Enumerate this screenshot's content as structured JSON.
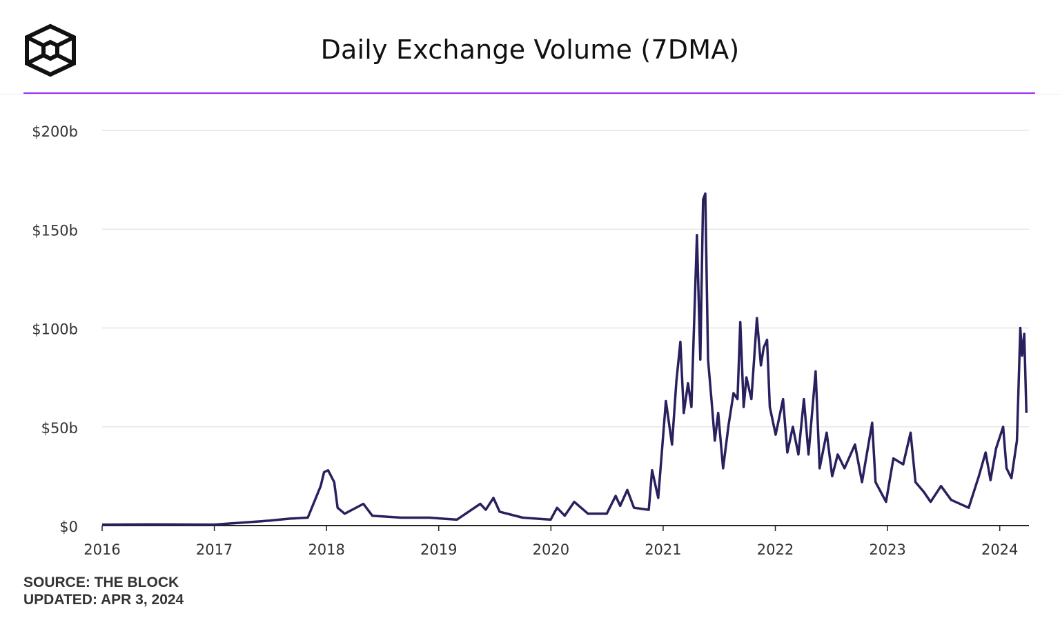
{
  "header": {
    "title": "Daily Exchange Volume (7DMA)",
    "logo": "the-block-cube-logo",
    "accent_color": "#9a2ff0"
  },
  "footer": {
    "source": "SOURCE: THE BLOCK",
    "updated": "UPDATED: APR 3, 2024"
  },
  "chart_data": {
    "type": "line",
    "title": "Daily Exchange Volume (7DMA)",
    "xlabel": "",
    "ylabel": "",
    "xlim": [
      "2016-01-01",
      "2024-04-03"
    ],
    "ylim": [
      0,
      200
    ],
    "grid": true,
    "line_color": "#28215e",
    "x_ticks": [
      "2016",
      "2017",
      "2018",
      "2019",
      "2020",
      "2021",
      "2022",
      "2023",
      "2024"
    ],
    "y_ticks": [
      {
        "value": 0,
        "label": "$0"
      },
      {
        "value": 50,
        "label": "$50b"
      },
      {
        "value": 100,
        "label": "$100b"
      },
      {
        "value": 150,
        "label": "$150b"
      },
      {
        "value": 200,
        "label": "$200b"
      }
    ],
    "series": [
      {
        "unit": "USD billions",
        "points": [
          [
            "2016-01-01",
            0.5
          ],
          [
            "2016-06-01",
            0.6
          ],
          [
            "2016-12-31",
            0.5
          ],
          [
            "2017-04-01",
            1.5
          ],
          [
            "2017-07-01",
            2.5
          ],
          [
            "2017-09-01",
            3.5
          ],
          [
            "2017-11-01",
            4
          ],
          [
            "2017-12-13",
            20
          ],
          [
            "2017-12-24",
            27
          ],
          [
            "2018-01-06",
            28
          ],
          [
            "2018-01-26",
            22
          ],
          [
            "2018-02-06",
            9
          ],
          [
            "2018-03-01",
            6
          ],
          [
            "2018-05-01",
            11
          ],
          [
            "2018-05-30",
            5
          ],
          [
            "2018-09-01",
            4
          ],
          [
            "2018-12-01",
            4
          ],
          [
            "2019-03-01",
            3
          ],
          [
            "2019-05-16",
            11
          ],
          [
            "2019-06-03",
            8
          ],
          [
            "2019-06-28",
            14
          ],
          [
            "2019-07-18",
            7
          ],
          [
            "2019-10-01",
            4
          ],
          [
            "2019-12-31",
            3
          ],
          [
            "2020-01-21",
            9
          ],
          [
            "2020-02-15",
            5
          ],
          [
            "2020-03-17",
            12
          ],
          [
            "2020-05-01",
            6
          ],
          [
            "2020-07-01",
            6
          ],
          [
            "2020-07-30",
            15
          ],
          [
            "2020-08-14",
            10
          ],
          [
            "2020-09-06",
            18
          ],
          [
            "2020-09-28",
            9
          ],
          [
            "2020-11-15",
            8
          ],
          [
            "2020-11-26",
            28
          ],
          [
            "2020-12-16",
            14
          ],
          [
            "2021-01-10",
            63
          ],
          [
            "2021-01-30",
            41
          ],
          [
            "2021-02-13",
            73
          ],
          [
            "2021-02-26",
            93
          ],
          [
            "2021-03-09",
            57
          ],
          [
            "2021-03-23",
            72
          ],
          [
            "2021-04-03",
            60
          ],
          [
            "2021-04-21",
            147
          ],
          [
            "2021-05-02",
            84
          ],
          [
            "2021-05-11",
            165
          ],
          [
            "2021-05-18",
            168
          ],
          [
            "2021-05-27",
            84
          ],
          [
            "2021-06-07",
            64
          ],
          [
            "2021-06-18",
            43
          ],
          [
            "2021-06-29",
            57
          ],
          [
            "2021-07-15",
            29
          ],
          [
            "2021-08-02",
            51
          ],
          [
            "2021-08-18",
            67
          ],
          [
            "2021-08-31",
            64
          ],
          [
            "2021-09-09",
            103
          ],
          [
            "2021-09-20",
            60
          ],
          [
            "2021-09-29",
            75
          ],
          [
            "2021-10-15",
            64
          ],
          [
            "2021-11-02",
            105
          ],
          [
            "2021-11-15",
            81
          ],
          [
            "2021-11-24",
            90
          ],
          [
            "2021-12-05",
            94
          ],
          [
            "2021-12-14",
            60
          ],
          [
            "2022-01-02",
            46
          ],
          [
            "2022-01-26",
            64
          ],
          [
            "2022-02-09",
            37
          ],
          [
            "2022-02-27",
            50
          ],
          [
            "2022-03-17",
            36
          ],
          [
            "2022-04-04",
            64
          ],
          [
            "2022-04-19",
            36
          ],
          [
            "2022-05-12",
            78
          ],
          [
            "2022-05-25",
            29
          ],
          [
            "2022-06-17",
            47
          ],
          [
            "2022-07-05",
            25
          ],
          [
            "2022-07-23",
            36
          ],
          [
            "2022-08-14",
            29
          ],
          [
            "2022-09-17",
            41
          ],
          [
            "2022-10-10",
            22
          ],
          [
            "2022-11-12",
            52
          ],
          [
            "2022-11-23",
            22
          ],
          [
            "2022-12-27",
            12
          ],
          [
            "2023-01-20",
            34
          ],
          [
            "2023-02-21",
            31
          ],
          [
            "2023-03-17",
            47
          ],
          [
            "2023-04-02",
            22
          ],
          [
            "2023-04-29",
            17
          ],
          [
            "2023-05-21",
            12
          ],
          [
            "2023-06-24",
            20
          ],
          [
            "2023-07-27",
            13
          ],
          [
            "2023-09-22",
            9
          ],
          [
            "2023-10-25",
            25
          ],
          [
            "2023-11-16",
            37
          ],
          [
            "2023-12-02",
            23
          ],
          [
            "2023-12-20",
            39
          ],
          [
            "2024-01-12",
            50
          ],
          [
            "2024-01-23",
            29
          ],
          [
            "2024-02-08",
            24
          ],
          [
            "2024-02-26",
            43
          ],
          [
            "2024-03-08",
            100
          ],
          [
            "2024-03-14",
            86
          ],
          [
            "2024-03-21",
            97
          ],
          [
            "2024-03-28",
            57
          ]
        ]
      }
    ]
  }
}
